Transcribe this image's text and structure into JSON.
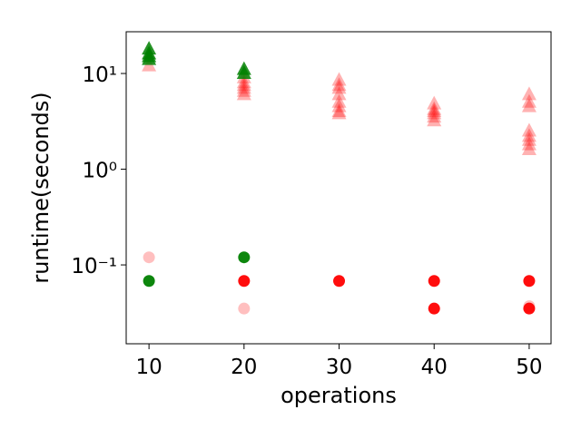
{
  "chart_data": {
    "type": "scatter",
    "xlabel": "operations",
    "ylabel": "runtime(seconds)",
    "xlim": [
      7.6,
      52.3
    ],
    "xticks": [
      10,
      20,
      30,
      40,
      50
    ],
    "ylim": [
      0.015,
      27.3
    ],
    "log_y": true,
    "yticks": [
      {
        "value": 0.1,
        "label": "10⁻¹"
      },
      {
        "value": 1,
        "label": "10⁰"
      },
      {
        "value": 10,
        "label": "10¹"
      }
    ],
    "series": [
      {
        "marker": "triangle",
        "color": "#ff0000",
        "alpha": 0.3,
        "x": [
          10,
          20,
          20,
          20,
          20,
          20,
          20,
          30,
          30,
          30,
          30,
          30,
          30,
          30,
          30,
          40,
          40,
          40,
          40,
          40,
          40,
          50,
          50,
          50,
          50,
          50,
          50,
          50,
          50
        ],
        "y": [
          12,
          9,
          8,
          7.5,
          7,
          6.5,
          6,
          8.5,
          7.5,
          7,
          6,
          5,
          4.5,
          4,
          3.8,
          4.8,
          4.2,
          4,
          3.8,
          3.5,
          3.2,
          6,
          5,
          4.5,
          2.5,
          2.2,
          2,
          1.8,
          1.6
        ]
      },
      {
        "marker": "triangle",
        "color": "#008000",
        "alpha": 0.85,
        "x": [
          10,
          10,
          10,
          10,
          20,
          20
        ],
        "y": [
          18,
          16,
          15,
          14,
          11,
          10
        ]
      },
      {
        "marker": "circle",
        "color": "#ff0000",
        "alpha": 0.25,
        "x": [
          10,
          20,
          50
        ],
        "y": [
          0.12,
          0.035,
          0.037
        ]
      },
      {
        "marker": "circle",
        "color": "#ff0000",
        "alpha": 0.95,
        "x": [
          20,
          30,
          40,
          40,
          50,
          50
        ],
        "y": [
          0.068,
          0.068,
          0.068,
          0.035,
          0.068,
          0.035
        ]
      },
      {
        "marker": "circle",
        "color": "#008000",
        "alpha": 0.95,
        "x": [
          10,
          20
        ],
        "y": [
          0.068,
          0.12
        ]
      }
    ]
  }
}
